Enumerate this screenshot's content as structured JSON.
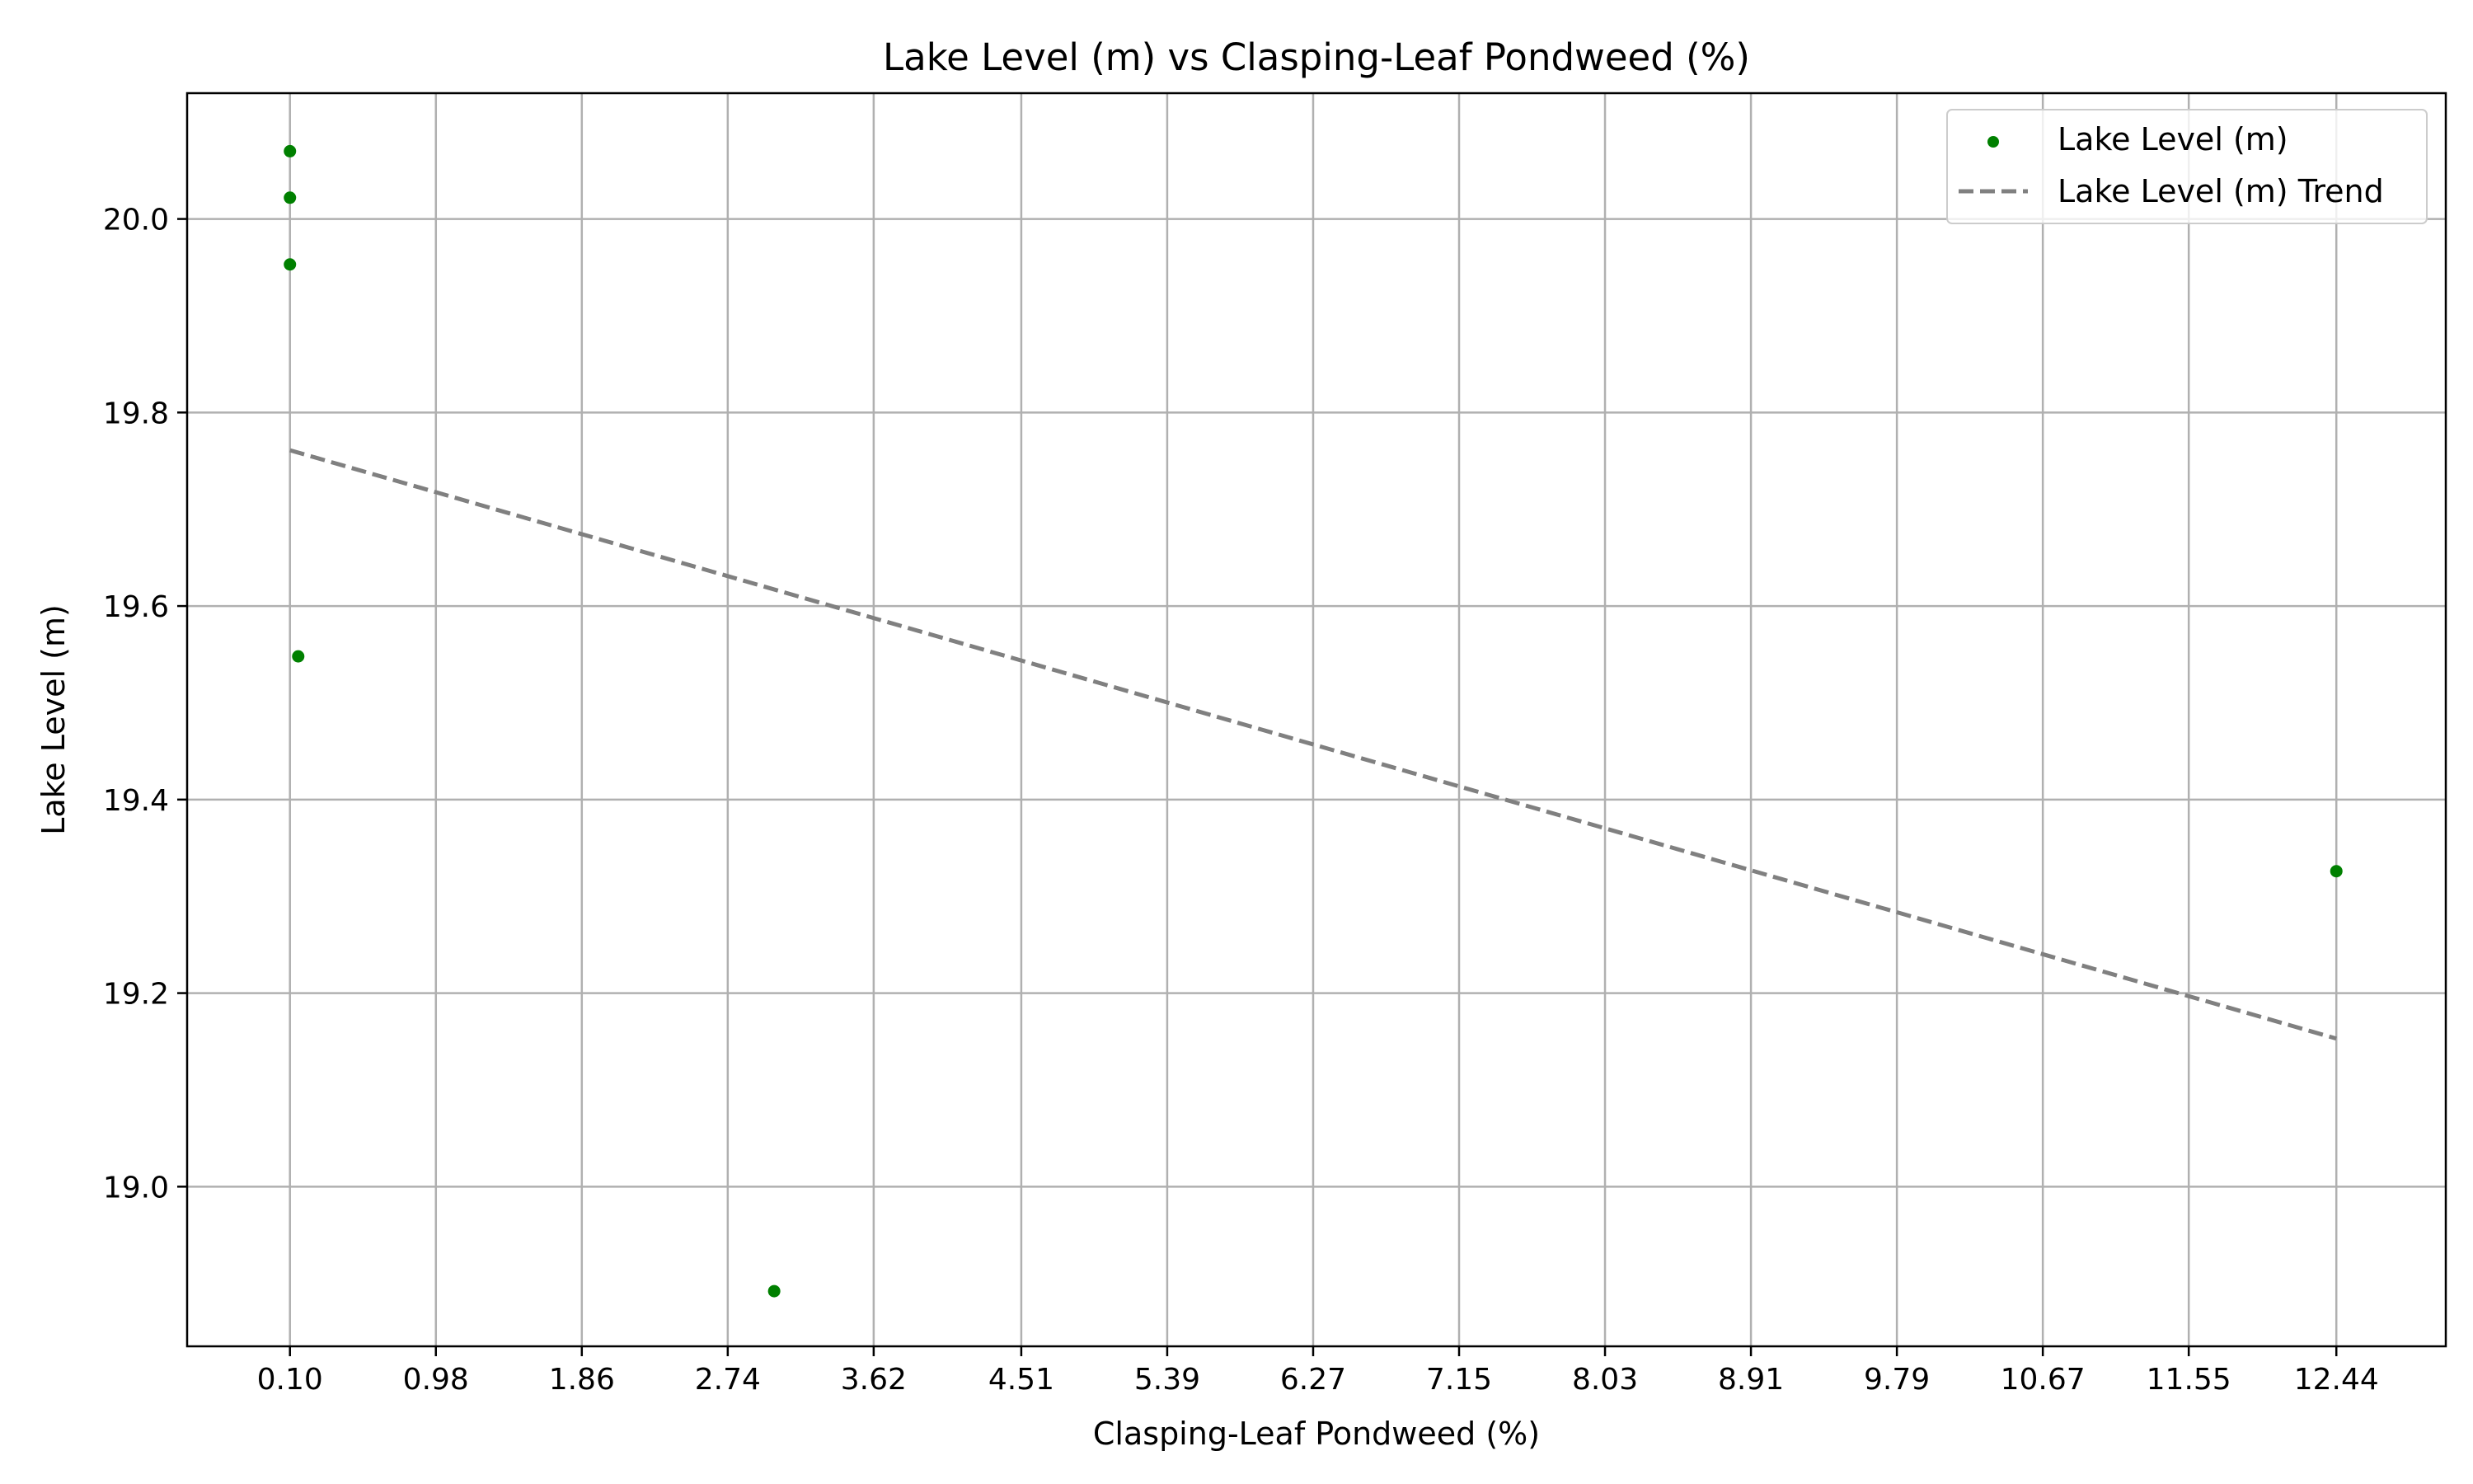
{
  "chart_data": {
    "type": "scatter",
    "title": "Lake Level (m) vs Clasping-Leaf Pondweed (%)",
    "xlabel": "Clasping-Leaf Pondweed (%)",
    "ylabel": "Lake Level (m)",
    "xlim": [
      -0.52,
      13.1
    ],
    "ylim": [
      18.835,
      20.13
    ],
    "grid": true,
    "legend_position": "top-right",
    "x_ticks": [
      "0.10",
      "0.98",
      "1.86",
      "2.74",
      "3.62",
      "4.51",
      "5.39",
      "6.27",
      "7.15",
      "8.03",
      "8.91",
      "9.79",
      "10.67",
      "11.55",
      "12.44"
    ],
    "y_ticks": [
      "19.0",
      "19.2",
      "19.4",
      "19.6",
      "19.8",
      "20.0"
    ],
    "series": [
      {
        "name": "Lake Level (m)",
        "kind": "scatter",
        "color": "#008000",
        "points": [
          {
            "x": 0.1,
            "y": 20.07
          },
          {
            "x": 0.1,
            "y": 20.022
          },
          {
            "x": 0.1,
            "y": 19.953
          },
          {
            "x": 0.15,
            "y": 19.548
          },
          {
            "x": 3.02,
            "y": 18.892
          },
          {
            "x": 12.44,
            "y": 19.326
          }
        ]
      },
      {
        "name": "Lake Level (m) Trend",
        "kind": "line",
        "style": "dashed",
        "color": "#808080",
        "points": [
          {
            "x": 0.1,
            "y": 19.761
          },
          {
            "x": 12.44,
            "y": 19.153
          }
        ]
      }
    ]
  }
}
